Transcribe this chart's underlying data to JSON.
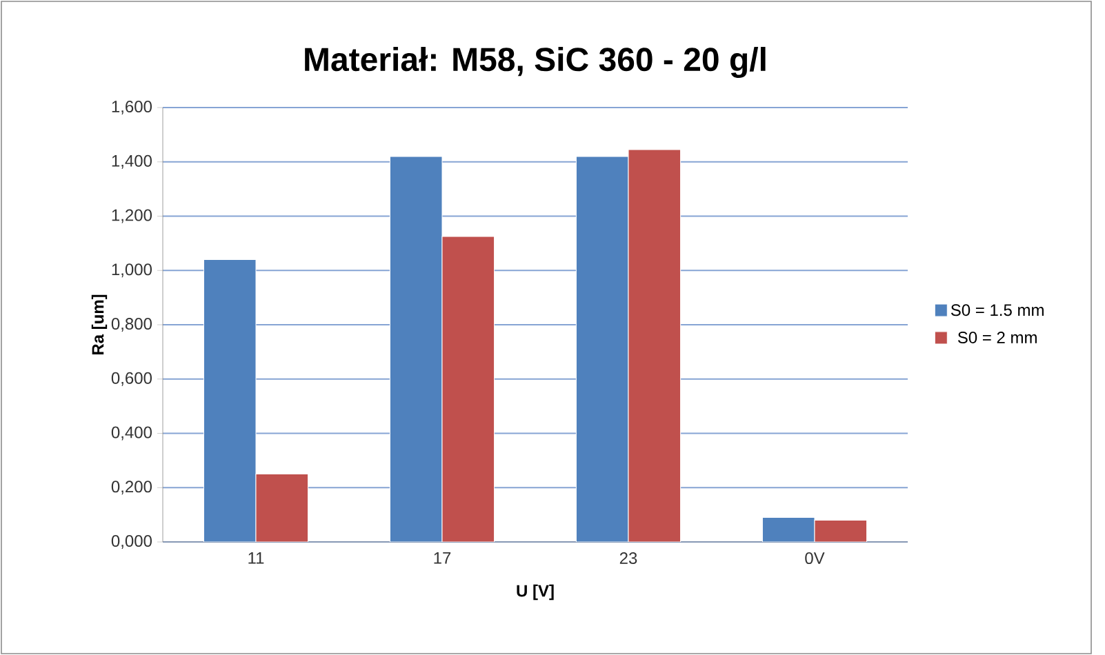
{
  "chart_data": {
    "type": "bar",
    "title": "Materiał: M58, SiC 360 - 20 g/l",
    "xlabel": "U [V]",
    "ylabel": "Ra [um]",
    "categories": [
      "11",
      "17",
      "23",
      "0V"
    ],
    "series": [
      {
        "name": "S0 =  1.5 mm",
        "color": "#4f81bd",
        "values": [
          1.04,
          1.42,
          1.42,
          0.09
        ]
      },
      {
        "name": "S0 = 2 mm",
        "color": "#c0504d",
        "values": [
          0.25,
          1.125,
          1.445,
          0.08
        ]
      }
    ],
    "ylim": [
      0,
      1.6
    ],
    "yticks": [
      {
        "value": 0,
        "label": "0,000"
      },
      {
        "value": 0.2,
        "label": "0,200"
      },
      {
        "value": 0.4,
        "label": "0,400"
      },
      {
        "value": 0.6,
        "label": "0,600"
      },
      {
        "value": 0.8,
        "label": "0,800"
      },
      {
        "value": 1.0,
        "label": "1,000"
      },
      {
        "value": 1.2,
        "label": "1,200"
      },
      {
        "value": 1.4,
        "label": "1,400"
      },
      {
        "value": 1.6,
        "label": "1,600"
      }
    ],
    "grid": "y",
    "legend": "right"
  }
}
